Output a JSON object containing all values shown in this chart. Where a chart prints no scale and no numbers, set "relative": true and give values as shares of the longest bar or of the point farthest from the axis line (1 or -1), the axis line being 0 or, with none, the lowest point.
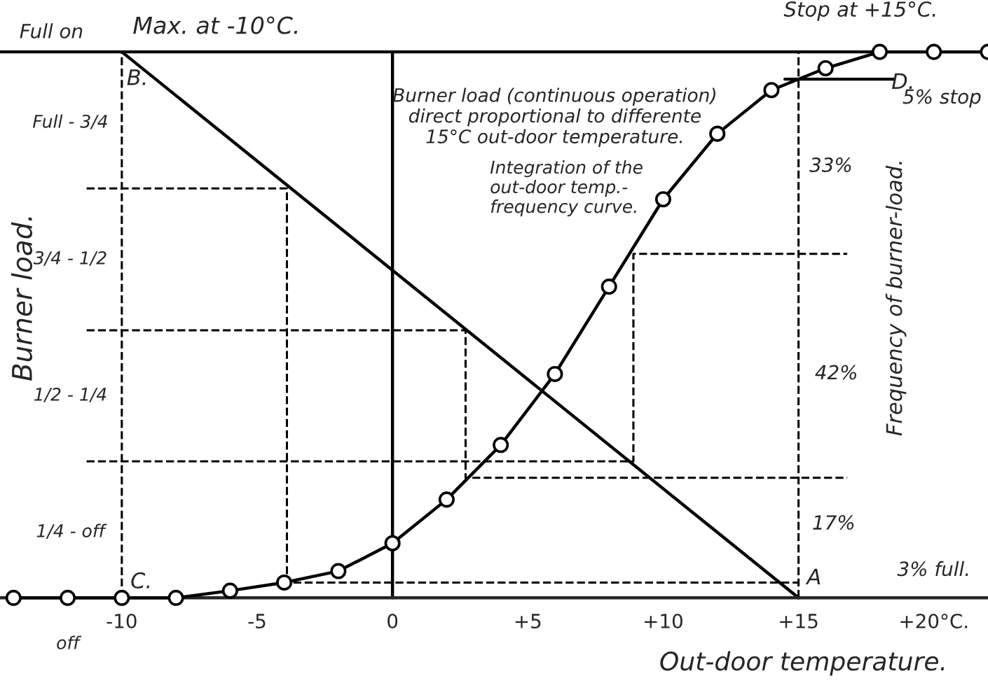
{
  "chart_data": {
    "type": "line",
    "relative": true,
    "xlabel": "Out-door temperature.",
    "ylabel": "Burner load.",
    "xlim": [
      -14.5,
      22
    ],
    "xticks": [
      {
        "value": -10,
        "label": "-10"
      },
      {
        "value": -5,
        "label": "-5"
      },
      0,
      {
        "value": 5,
        "label": "+5"
      },
      {
        "value": 10,
        "label": "+10"
      },
      {
        "value": 15,
        "label": "+15"
      },
      {
        "value": 20,
        "label": "+20°C."
      }
    ],
    "grid": false,
    "legend": false,
    "series": [
      {
        "color": "#000000",
        "marker": "circle",
        "line_style": "solid",
        "x": [
          -14,
          -12,
          -10,
          -8,
          -6,
          -4,
          -2,
          0,
          2,
          4,
          6,
          8,
          10,
          12,
          14,
          16,
          18,
          20,
          22
        ],
        "values": [
          0,
          0,
          0,
          0,
          0.013,
          0.028,
          0.049,
          0.1,
          0.18,
          0.28,
          0.41,
          0.57,
          0.73,
          0.85,
          0.93,
          0.97,
          1,
          1,
          1
        ]
      },
      {
        "type": "line",
        "color": "#000000",
        "marker": "none",
        "line_style": "solid",
        "x": [
          -10,
          15
        ],
        "values": [
          1,
          0
        ]
      },
      {
        "type": "line",
        "color": "#000000",
        "marker": "none",
        "line_style": "solid",
        "x": [
          -14.5,
          22
        ],
        "values": [
          1,
          1
        ]
      },
      {
        "type": "line",
        "color": "#000000",
        "marker": "none",
        "line_style": "solid",
        "x": [
          0,
          0
        ],
        "values": [
          0,
          1
        ]
      },
      {
        "type": "line",
        "color": "#000000",
        "marker": "none",
        "line_style": "solid",
        "x": [
          14.5,
          18.5
        ],
        "values": [
          0.95,
          0.95
        ]
      },
      {
        "type": "line",
        "color": "#000000",
        "marker": "none",
        "line_style": "dashed",
        "x": [
          -10,
          -10
        ],
        "values": [
          0,
          1
        ]
      },
      {
        "type": "line",
        "color": "#000000",
        "marker": "none",
        "line_style": "dashed",
        "x": [
          15,
          15
        ],
        "values": [
          0,
          1
        ]
      },
      {
        "type": "line",
        "color": "#000000",
        "marker": "none",
        "line_style": "dashed",
        "x": [
          -11.3,
          -3.9,
          -3.9,
          15
        ],
        "values": [
          0.75,
          0.75,
          0.028,
          0.028
        ]
      },
      {
        "type": "line",
        "color": "#000000",
        "marker": "none",
        "line_style": "dashed",
        "x": [
          -11.3,
          2.7,
          2.7,
          16.8
        ],
        "values": [
          0.49,
          0.49,
          0.22,
          0.22
        ]
      },
      {
        "type": "line",
        "color": "#000000",
        "marker": "none",
        "line_style": "dashed",
        "x": [
          -11.3,
          8.9,
          8.9,
          16.8
        ],
        "values": [
          0.25,
          0.25,
          0.63,
          0.63
        ]
      }
    ],
    "annotations": [
      "Full on",
      "Max. at -10°C.",
      "Full - 3/4",
      "3/4 - 1/2",
      "1/2 - 1/4",
      "1/4 - off",
      "off",
      "Burner load (continuous operation)\ndirect proportional to differente\n15°C out-door temperature.",
      "Integration of the\nout-door temp.-\nfrequency curve.",
      "Stop at +15°C.",
      "5% stop",
      "33%",
      "42%",
      "17%",
      "3% full.",
      "Frequency of burner-load.",
      {
        "text": "B.",
        "x": -10,
        "y": 1
      },
      {
        "text": "C.",
        "x": -10,
        "y": 0
      },
      {
        "text": "A",
        "x": 15,
        "y": 0
      },
      {
        "text": "D.",
        "x": 18,
        "y": 1
      }
    ]
  }
}
